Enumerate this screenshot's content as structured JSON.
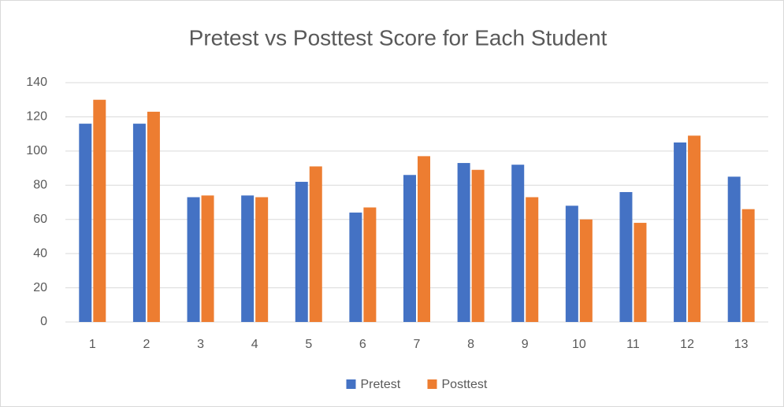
{
  "chart_data": {
    "type": "bar",
    "title": "Pretest vs Posttest Score for Each Student",
    "categories": [
      "1",
      "2",
      "3",
      "4",
      "5",
      "6",
      "7",
      "8",
      "9",
      "10",
      "11",
      "12",
      "13"
    ],
    "series": [
      {
        "name": "Pretest",
        "color": "#4472c4",
        "values": [
          116,
          116,
          73,
          74,
          82,
          64,
          86,
          93,
          92,
          68,
          76,
          105,
          85
        ]
      },
      {
        "name": "Posttest",
        "color": "#ed7d31",
        "values": [
          130,
          123,
          74,
          73,
          91,
          67,
          97,
          89,
          73,
          60,
          58,
          109,
          66
        ]
      }
    ],
    "ylim": [
      0,
      140
    ],
    "yticks": [
      0,
      20,
      40,
      60,
      80,
      100,
      120,
      140
    ],
    "grid": true,
    "legend": "bottom"
  }
}
